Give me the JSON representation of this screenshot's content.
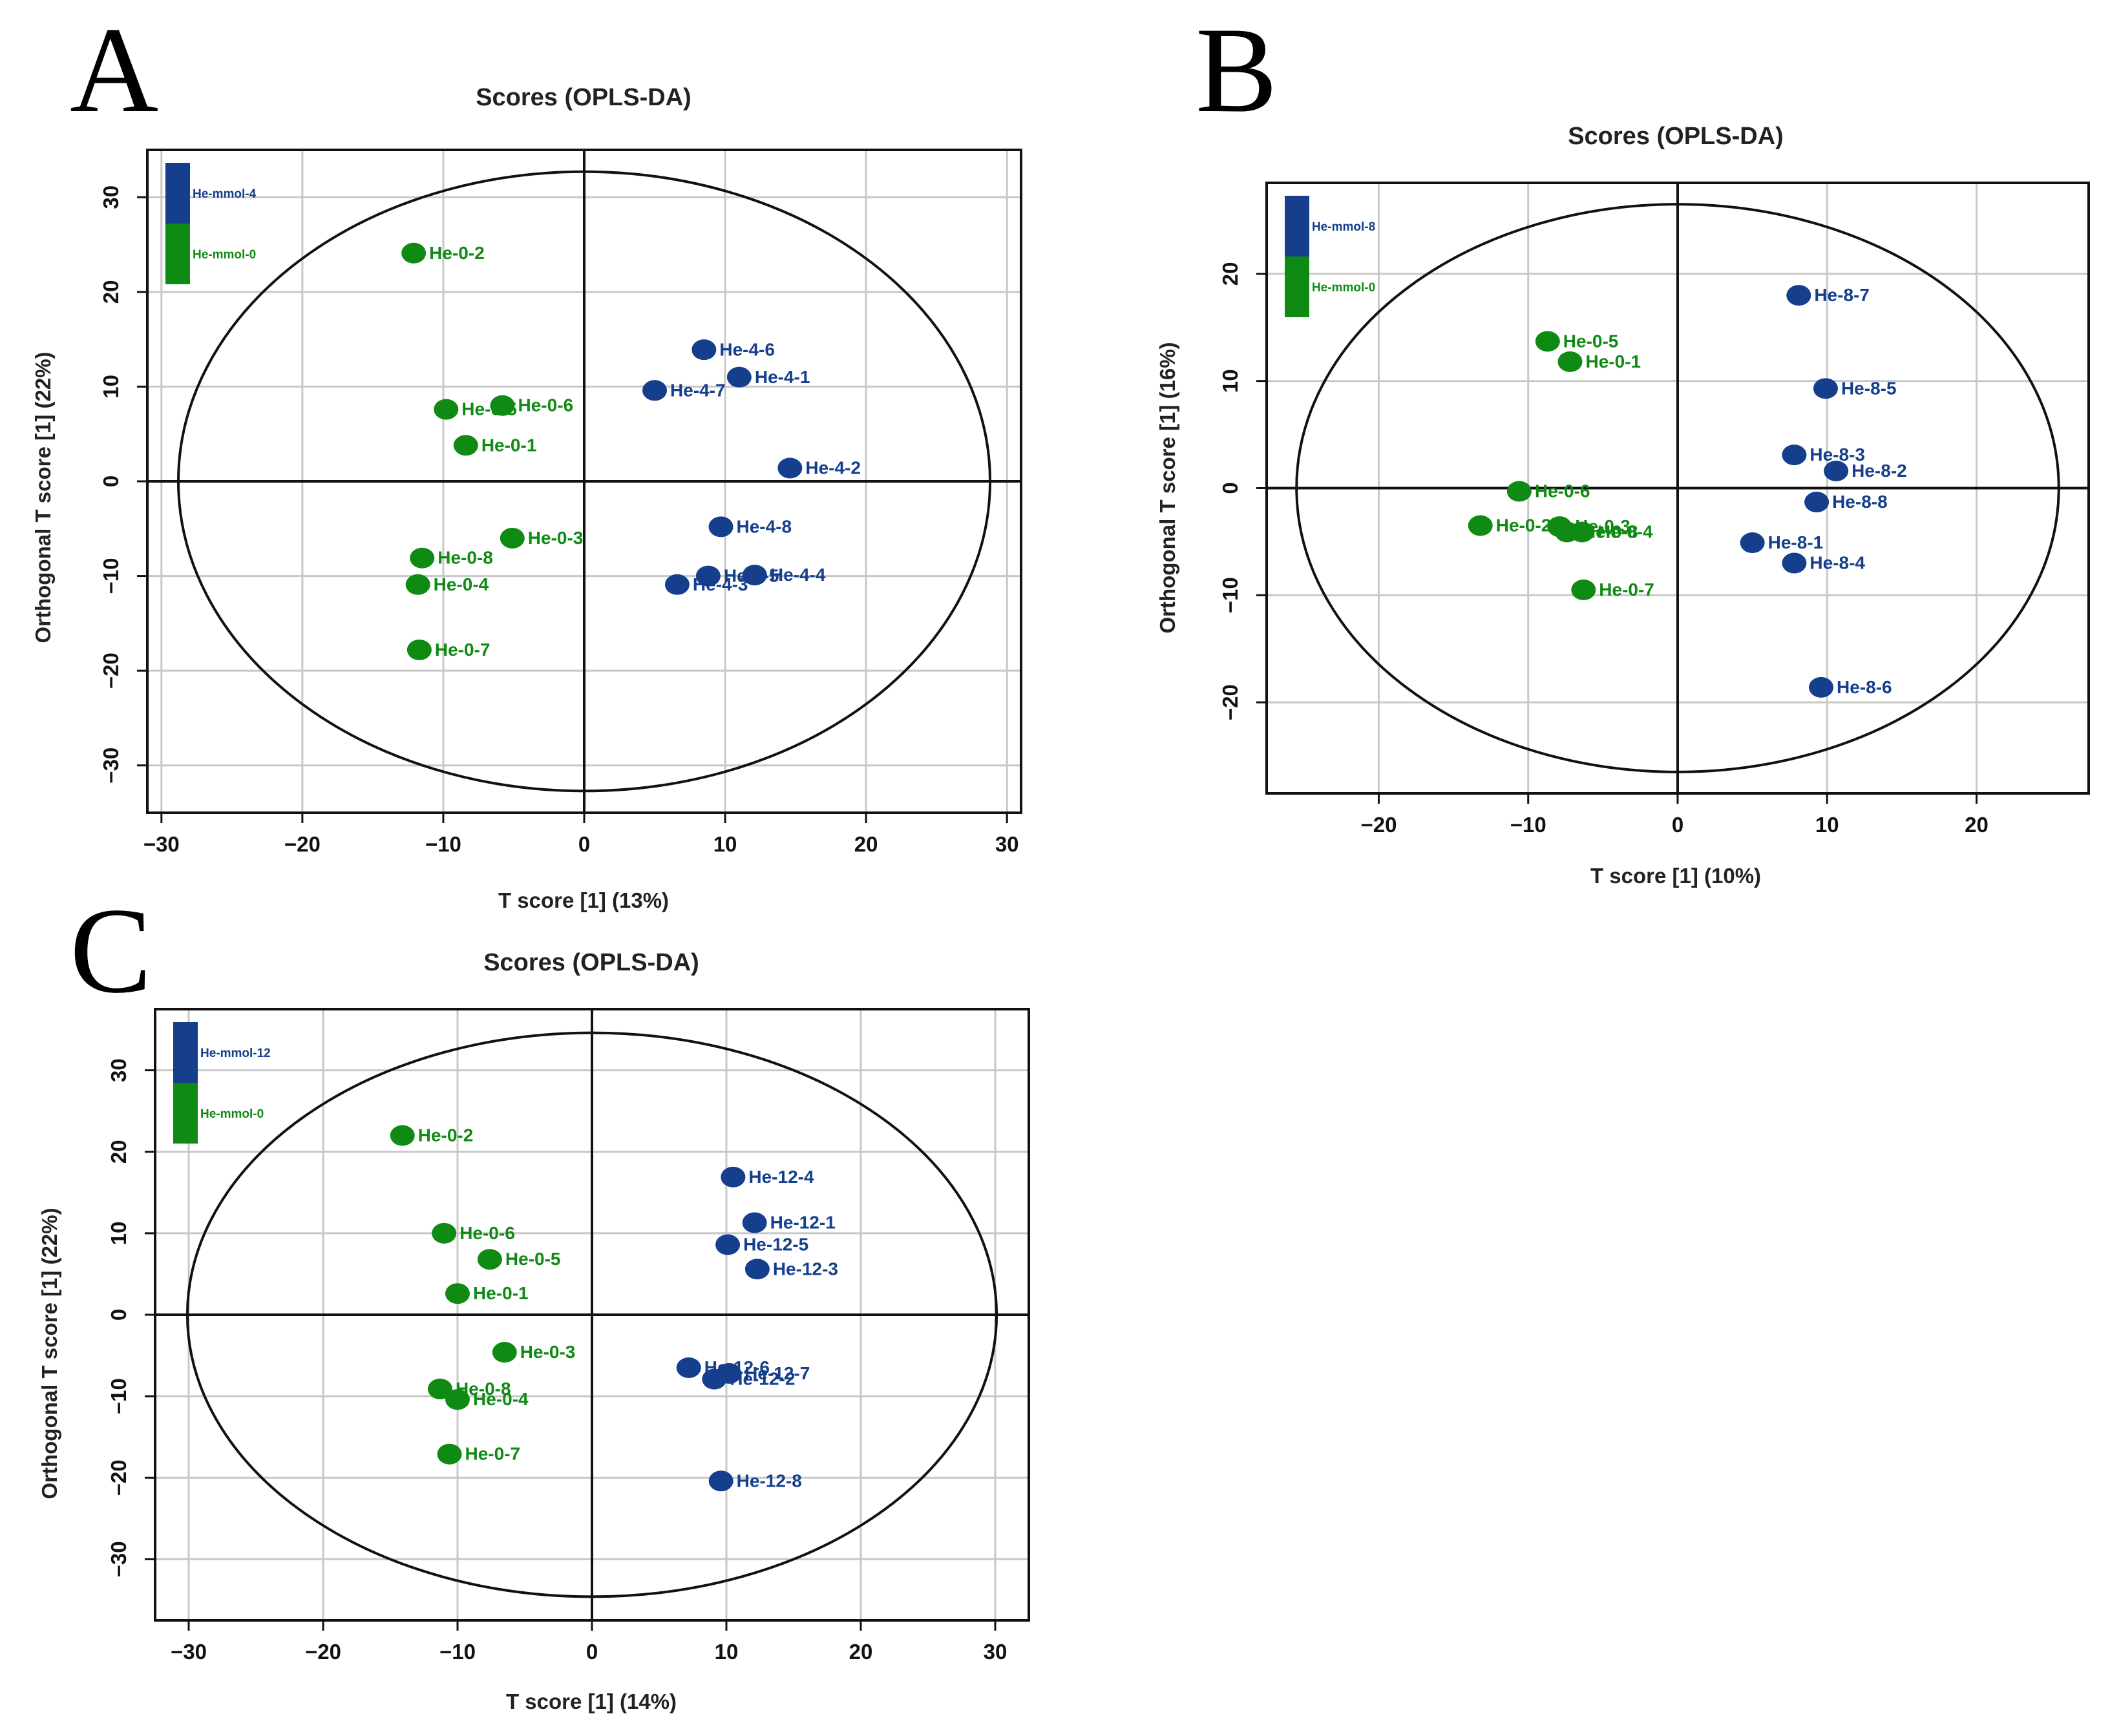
{
  "colors": {
    "group_a": "#153e8c",
    "group_b": "#0f8a13",
    "grid": "#c8c8c8",
    "axis": "#111111"
  },
  "chart_data": [
    {
      "panel": "A",
      "type": "scatter",
      "title": "Scores (OPLS-DA)",
      "xlabel": "T score [1] (13%)",
      "ylabel": "Orthogonal T score [1] (22%)",
      "xlim": [
        -31,
        31
      ],
      "ylim": [
        -35,
        35
      ],
      "xticks": [
        -30,
        -20,
        -10,
        0,
        10,
        20,
        30
      ],
      "yticks": [
        -30,
        -20,
        -10,
        0,
        10,
        20,
        30
      ],
      "ellipse": {
        "rx": 28.8,
        "ry": 32.7
      },
      "legend": [
        {
          "label": "He-mmol-4",
          "group": "a"
        },
        {
          "label": "He-mmol-0",
          "group": "b"
        }
      ],
      "series": [
        {
          "name": "He-mmol-4",
          "group": "a",
          "points": [
            {
              "label": "He-4-6",
              "x": 8.5,
              "y": 13.9
            },
            {
              "label": "He-4-1",
              "x": 11.0,
              "y": 11.0
            },
            {
              "label": "He-4-7",
              "x": 5.0,
              "y": 9.6
            },
            {
              "label": "He-4-2",
              "x": 14.6,
              "y": 1.4
            },
            {
              "label": "He-4-8",
              "x": 9.7,
              "y": -4.8
            },
            {
              "label": "He-4-5",
              "x": 8.8,
              "y": -10.0
            },
            {
              "label": "He-4-3",
              "x": 6.6,
              "y": -10.9
            },
            {
              "label": "He-4-4",
              "x": 12.1,
              "y": -9.9
            }
          ]
        },
        {
          "name": "He-mmol-0",
          "group": "b",
          "points": [
            {
              "label": "He-0-2",
              "x": -12.1,
              "y": 24.1
            },
            {
              "label": "He-0-5",
              "x": -9.8,
              "y": 7.6
            },
            {
              "label": "He-0-6",
              "x": -5.8,
              "y": 8.0
            },
            {
              "label": "He-0-1",
              "x": -8.4,
              "y": 3.8
            },
            {
              "label": "He-0-3",
              "x": -5.1,
              "y": -6.0
            },
            {
              "label": "He-0-8",
              "x": -11.5,
              "y": -8.1
            },
            {
              "label": "He-0-4",
              "x": -11.8,
              "y": -10.9
            },
            {
              "label": "He-0-7",
              "x": -11.7,
              "y": -17.8
            }
          ]
        }
      ]
    },
    {
      "panel": "B",
      "type": "scatter",
      "title": "Scores (OPLS-DA)",
      "xlabel": "T score [1] (10%)",
      "ylabel": "Orthogonal T score [1] (16%)",
      "xlim": [
        -27.5,
        27.5
      ],
      "ylim": [
        -28.5,
        28.5
      ],
      "xticks": [
        -20,
        -10,
        0,
        10,
        20
      ],
      "yticks": [
        -20,
        -10,
        0,
        10,
        20
      ],
      "ellipse": {
        "rx": 25.5,
        "ry": 26.5
      },
      "legend": [
        {
          "label": "He-mmol-8",
          "group": "a"
        },
        {
          "label": "He-mmol-0",
          "group": "b"
        }
      ],
      "series": [
        {
          "name": "He-mmol-8",
          "group": "a",
          "points": [
            {
              "label": "He-8-7",
              "x": 8.1,
              "y": 18.0
            },
            {
              "label": "He-8-5",
              "x": 9.9,
              "y": 9.3
            },
            {
              "label": "He-8-3",
              "x": 7.8,
              "y": 3.1
            },
            {
              "label": "He-8-2",
              "x": 10.6,
              "y": 1.6
            },
            {
              "label": "He-8-8",
              "x": 9.3,
              "y": -1.3
            },
            {
              "label": "He-8-1",
              "x": 5.0,
              "y": -5.1
            },
            {
              "label": "He-8-4",
              "x": 7.8,
              "y": -7.0
            },
            {
              "label": "He-8-6",
              "x": 9.6,
              "y": -18.6
            }
          ]
        },
        {
          "name": "He-mmol-0",
          "group": "b",
          "points": [
            {
              "label": "He-0-5",
              "x": -8.7,
              "y": 13.7
            },
            {
              "label": "He-0-1",
              "x": -7.2,
              "y": 11.8
            },
            {
              "label": "He-0-6",
              "x": -10.6,
              "y": -0.3
            },
            {
              "label": "He-0-2",
              "x": -13.2,
              "y": -3.5
            },
            {
              "label": "He-0-3",
              "x": -7.9,
              "y": -3.6
            },
            {
              "label": "He-0-8",
              "x": -7.4,
              "y": -4.1
            },
            {
              "label": "He-0-4",
              "x": -6.4,
              "y": -4.1
            },
            {
              "label": "He-0-7",
              "x": -6.3,
              "y": -9.5
            }
          ]
        }
      ]
    },
    {
      "panel": "C",
      "type": "scatter",
      "title": "Scores (OPLS-DA)",
      "xlabel": "T score [1] (14%)",
      "ylabel": "Orthogonal T score [1] (22%)",
      "xlim": [
        -32.5,
        32.5
      ],
      "ylim": [
        -37.5,
        37.5
      ],
      "xticks": [
        -30,
        -20,
        -10,
        0,
        10,
        20,
        30
      ],
      "yticks": [
        -30,
        -20,
        -10,
        0,
        10,
        20,
        30
      ],
      "ellipse": {
        "rx": 30.1,
        "ry": 34.6
      },
      "legend": [
        {
          "label": "He-mmol-12",
          "group": "a"
        },
        {
          "label": "He-mmol-0",
          "group": "b"
        }
      ],
      "series": [
        {
          "name": "He-mmol-12",
          "group": "a",
          "points": [
            {
              "label": "He-12-4",
              "x": 10.5,
              "y": 16.9
            },
            {
              "label": "He-12-1",
              "x": 12.1,
              "y": 11.3
            },
            {
              "label": "He-12-5",
              "x": 10.1,
              "y": 8.6
            },
            {
              "label": "He-12-3",
              "x": 12.3,
              "y": 5.6
            },
            {
              "label": "He-12-6",
              "x": 7.2,
              "y": -6.5
            },
            {
              "label": "He-12-7",
              "x": 10.2,
              "y": -7.2
            },
            {
              "label": "He-12-2",
              "x": 9.1,
              "y": -7.9
            },
            {
              "label": "He-12-8",
              "x": 9.6,
              "y": -20.4
            }
          ]
        },
        {
          "name": "He-mmol-0",
          "group": "b",
          "points": [
            {
              "label": "He-0-2",
              "x": -14.1,
              "y": 22.0
            },
            {
              "label": "He-0-6",
              "x": -11.0,
              "y": 10.0
            },
            {
              "label": "He-0-5",
              "x": -7.6,
              "y": 6.8
            },
            {
              "label": "He-0-1",
              "x": -10.0,
              "y": 2.6
            },
            {
              "label": "He-0-3",
              "x": -6.5,
              "y": -4.6
            },
            {
              "label": "He-0-8",
              "x": -11.3,
              "y": -9.1
            },
            {
              "label": "He-0-4",
              "x": -10.0,
              "y": -10.4
            },
            {
              "label": "He-0-7",
              "x": -10.6,
              "y": -17.1
            }
          ]
        }
      ]
    }
  ]
}
